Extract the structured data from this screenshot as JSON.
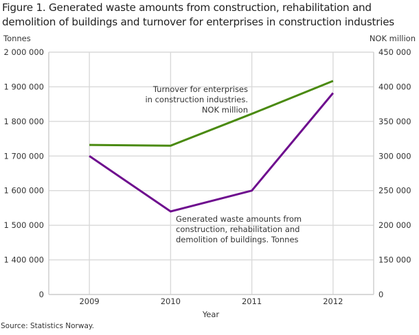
{
  "title_lines": [
    "Figure 1. Generated waste amounts from construction, rehabilitation and",
    "demolition of buildings and turnover for enterprises in construction industries"
  ],
  "source": "Source: Statistics Norway.",
  "colors": {
    "waste": "#6e0d8e",
    "turnover": "#4a8a10",
    "grid": "#d9d9d9",
    "axis": "#cccccc"
  },
  "chart_data": {
    "type": "line",
    "title": "Figure 1. Generated waste amounts from construction, rehabilitation and demolition of buildings and turnover for enterprises in construction industries",
    "xlabel": "Year",
    "x": [
      "2009",
      "2010",
      "2011",
      "2012"
    ],
    "left_axis": {
      "label": "Tonnes",
      "ticks": [
        0,
        1400000,
        1500000,
        1600000,
        1700000,
        1800000,
        1900000,
        2000000
      ],
      "tick_labels": [
        "0",
        "1 400 000",
        "1 500 000",
        "1 600 000",
        "1 700 000",
        "1 800 000",
        "1 900 000",
        "2 000 000"
      ],
      "ylim": [
        0,
        2000000
      ],
      "broken": true
    },
    "right_axis": {
      "label": "NOK million",
      "ticks": [
        0,
        150000,
        200000,
        250000,
        300000,
        350000,
        400000,
        450000
      ],
      "tick_labels": [
        "0",
        "150 000",
        "200 000",
        "250 000",
        "300 000",
        "350 000",
        "400 000",
        "450 000"
      ],
      "ylim": [
        0,
        450000
      ],
      "broken": true
    },
    "grid": true,
    "series": [
      {
        "name": "Generated waste amounts from construction, rehabilitation and demolition of buildings. Tonnes",
        "annotation_lines": [
          "Generated waste amounts from",
          "construction, rehabilitation and",
          "demolition of buildings. Tonnes"
        ],
        "axis": "left",
        "values": [
          1700000,
          1540000,
          1600000,
          1882000
        ]
      },
      {
        "name": "Turnover for enterprises in construction industries. NOK million",
        "annotation_lines": [
          "Turnover for enterprises",
          "in construction industries.",
          "NOK million"
        ],
        "axis": "right",
        "values": [
          316000,
          315000,
          361000,
          408500
        ]
      }
    ]
  }
}
